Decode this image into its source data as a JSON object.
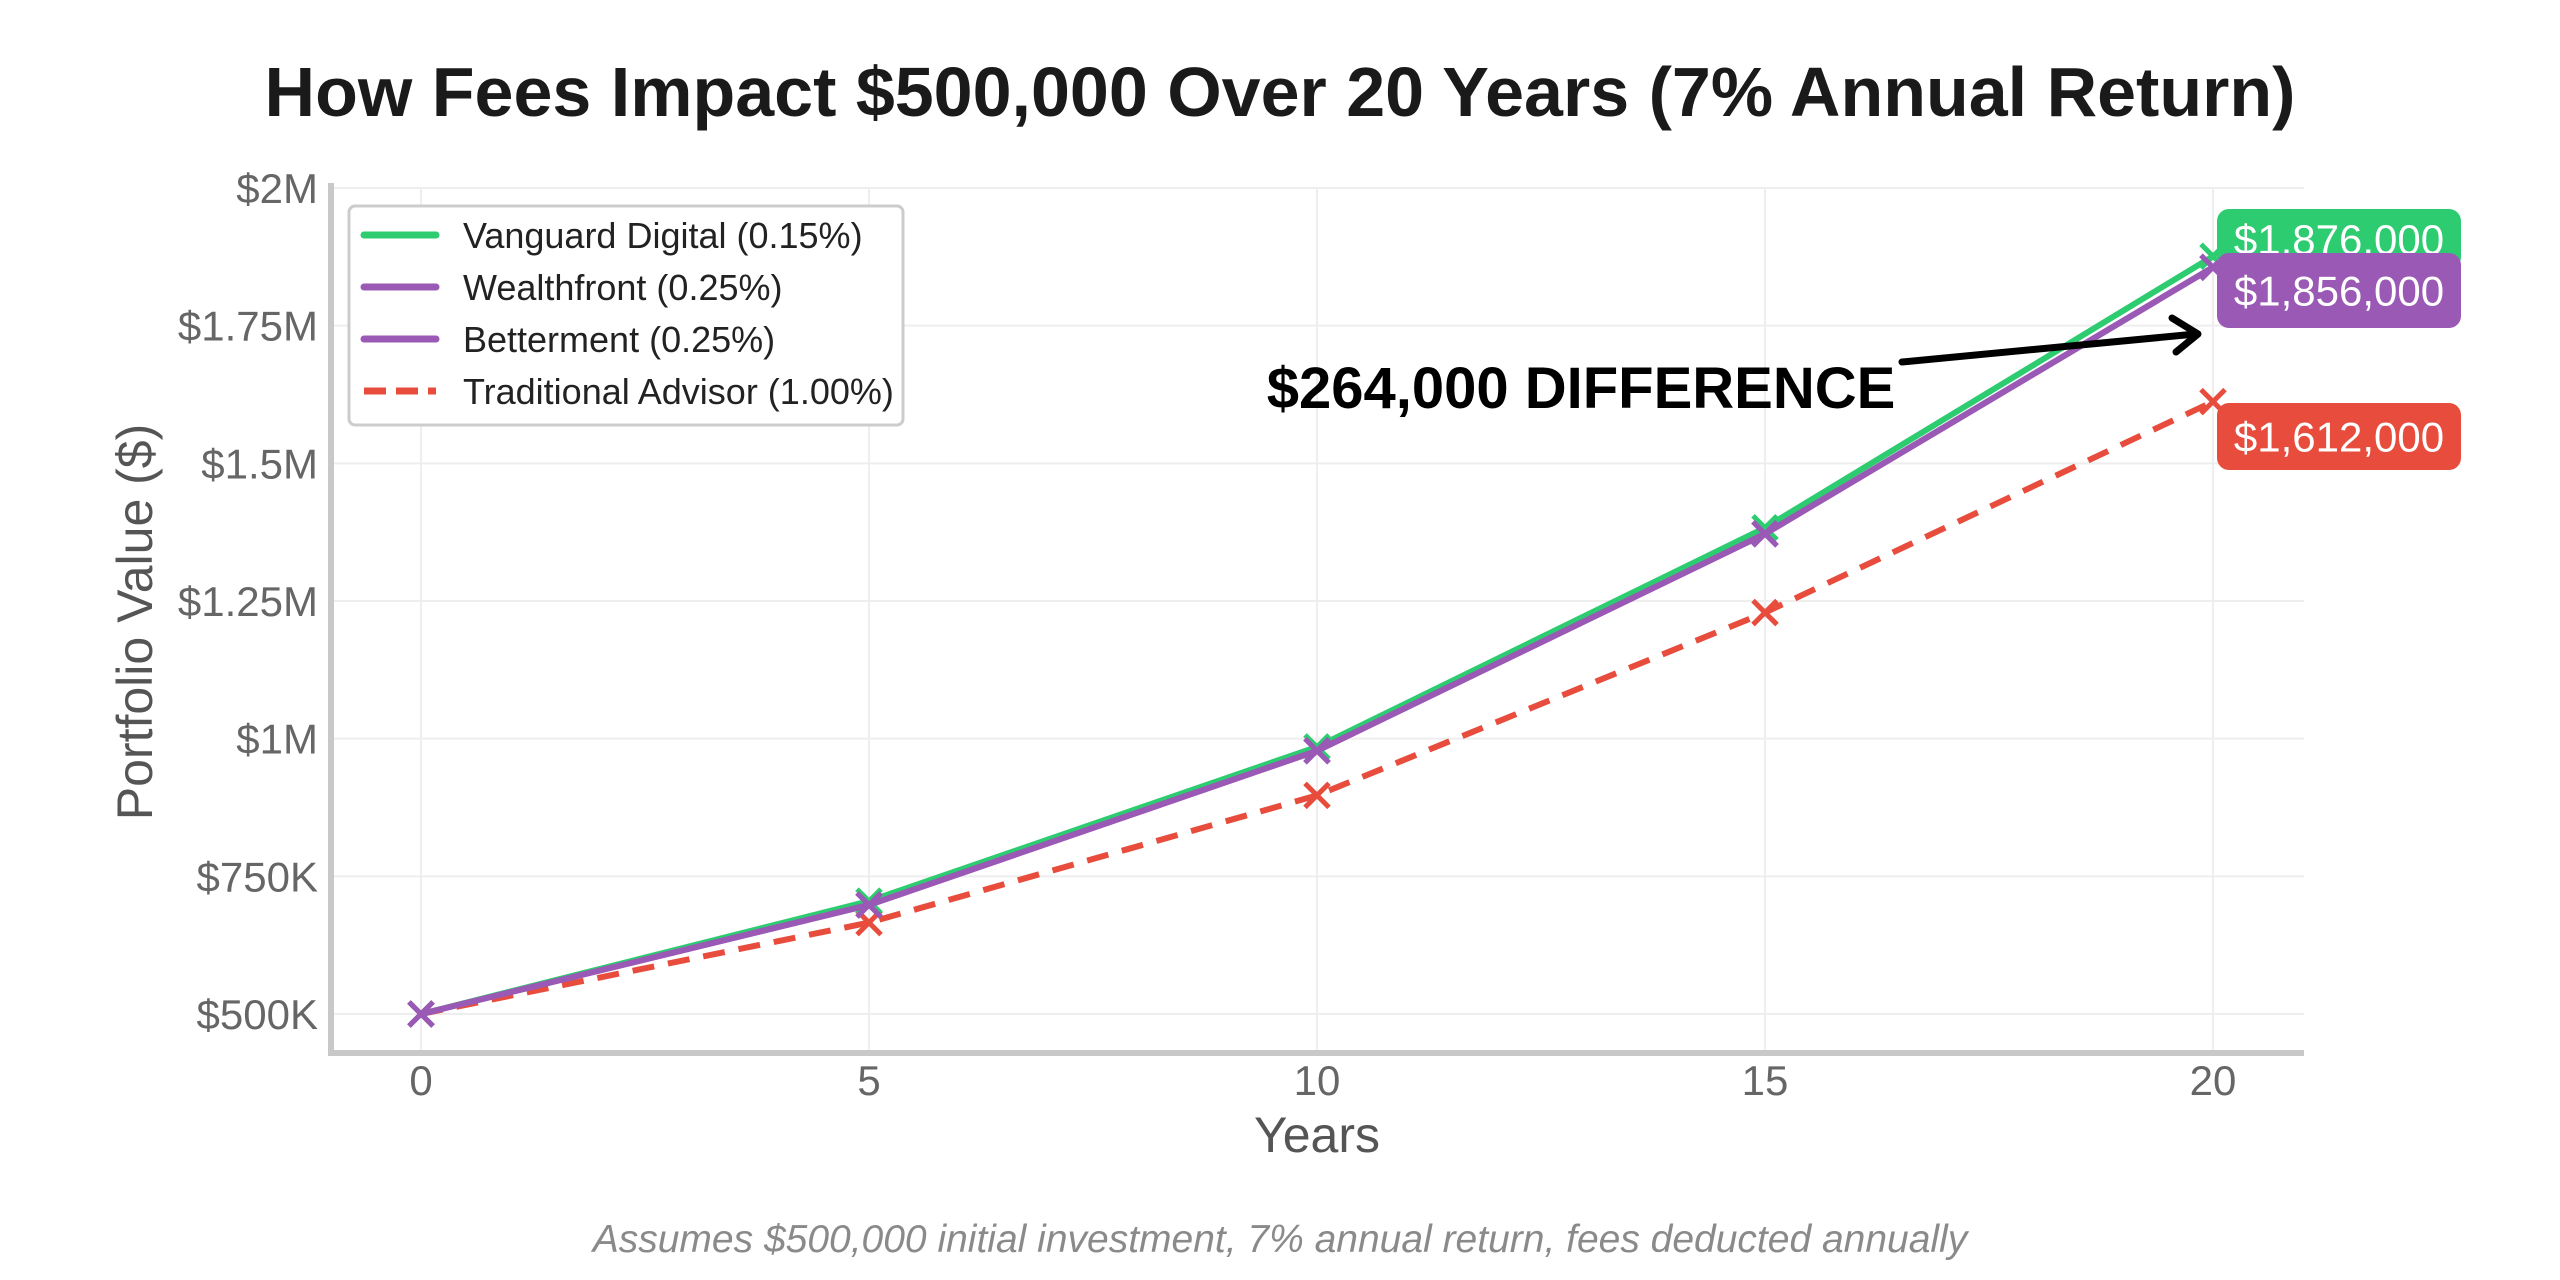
{
  "chart_data": {
    "type": "line",
    "title": "How Fees Impact $500,000 Over 20 Years (7% Annual Return)",
    "xlabel": "Years",
    "ylabel": "Portfolio Value ($)",
    "footnote": "Assumes $500,000 initial investment, 7% annual return, fees deducted annually",
    "x": [
      0,
      5,
      10,
      15,
      20
    ],
    "xticks": [
      0,
      5,
      10,
      15,
      20
    ],
    "xlim": [
      -1,
      21
    ],
    "ylim": [
      430000,
      2000000
    ],
    "yticks": [
      500000,
      750000,
      1000000,
      1250000,
      1500000,
      1750000,
      2000000
    ],
    "ytick_labels": [
      "$500K",
      "$750K",
      "$1M",
      "$1.25M",
      "$1.5M",
      "$1.75M",
      "$2M"
    ],
    "grid": true,
    "legend_position": "top-left",
    "series": [
      {
        "name": "Vanguard Digital (0.15%)",
        "color": "#2ecc71",
        "dashed": false,
        "marker": "x",
        "values": [
          500000,
          705000,
          985000,
          1383000,
          1876000
        ],
        "end_label": "$1,876,000"
      },
      {
        "name": "Wealthfront (0.25%)",
        "color": "#9b59b6",
        "dashed": false,
        "marker": "x",
        "values": [
          500000,
          698000,
          978000,
          1372000,
          1856000
        ],
        "end_label": "$1,856,000"
      },
      {
        "name": "Betterment (0.25%)",
        "color": "#9b59b6",
        "dashed": false,
        "marker": "x",
        "values": [
          500000,
          698000,
          978000,
          1372000,
          1856000
        ]
      },
      {
        "name": "Traditional Advisor (1.00%)",
        "color": "#e74c3c",
        "dashed": true,
        "marker": "x",
        "values": [
          500000,
          666000,
          897000,
          1229000,
          1612000
        ],
        "end_label": "$1,612,000"
      }
    ],
    "annotation": {
      "text": "$264,000 DIFFERENCE",
      "arrow_to": [
        20,
        1740000
      ]
    }
  }
}
